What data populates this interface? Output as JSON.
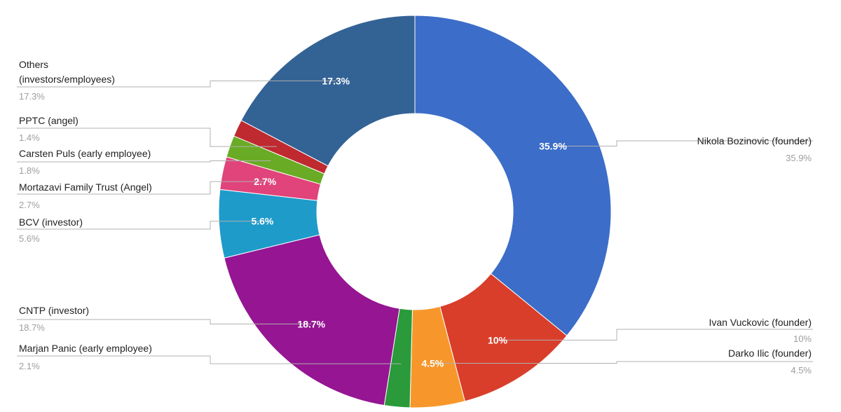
{
  "chart_data": {
    "type": "pie",
    "variant": "donut",
    "title": "",
    "legend": "labels-outside-with-leader-lines",
    "slices": [
      {
        "name": "Nikola Bozinovic (founder)",
        "value": 35.9,
        "label": "35.9%",
        "outer_pct": "35.9%",
        "color": "#3c6dc8",
        "inner_label": "35.9%"
      },
      {
        "name": "Ivan Vuckovic (founder)",
        "value": 10,
        "label": "10%",
        "outer_pct": "10%",
        "color": "#d93e2b",
        "inner_label": "10%"
      },
      {
        "name": "Darko Ilic (founder)",
        "value": 4.5,
        "label": "4.5%",
        "outer_pct": "4.5%",
        "color": "#f7972b",
        "inner_label": "4.5%"
      },
      {
        "name": "Marjan Panic (early employee)",
        "value": 2.1,
        "label": "2.1%",
        "outer_pct": "2.1%",
        "color": "#2a9a3a",
        "inner_label": ""
      },
      {
        "name": "CNTP (investor)",
        "value": 18.7,
        "label": "18.7%",
        "outer_pct": "18.7%",
        "color": "#951593",
        "inner_label": "18.7%"
      },
      {
        "name": "BCV (investor)",
        "value": 5.6,
        "label": "5.6%",
        "outer_pct": "5.6%",
        "color": "#1e9bc9",
        "inner_label": "5.6%"
      },
      {
        "name": "Mortazavi Family Trust (Angel)",
        "value": 2.7,
        "label": "2.7%",
        "outer_pct": "2.7%",
        "color": "#e0447a",
        "inner_label": "2.7%"
      },
      {
        "name": "Carsten Puls (early employee)",
        "value": 1.8,
        "label": "1.8%",
        "outer_pct": "1.8%",
        "color": "#6aab25",
        "inner_label": ""
      },
      {
        "name": "PPTC (angel)",
        "value": 1.4,
        "label": "1.4%",
        "outer_pct": "1.4%",
        "color": "#bf2a30",
        "inner_label": ""
      },
      {
        "name": "Others\n(investors/employees)",
        "value": 17.3,
        "label": "17.3%",
        "outer_pct": "17.3%",
        "color": "#336295",
        "inner_label": "17.3%"
      }
    ]
  }
}
